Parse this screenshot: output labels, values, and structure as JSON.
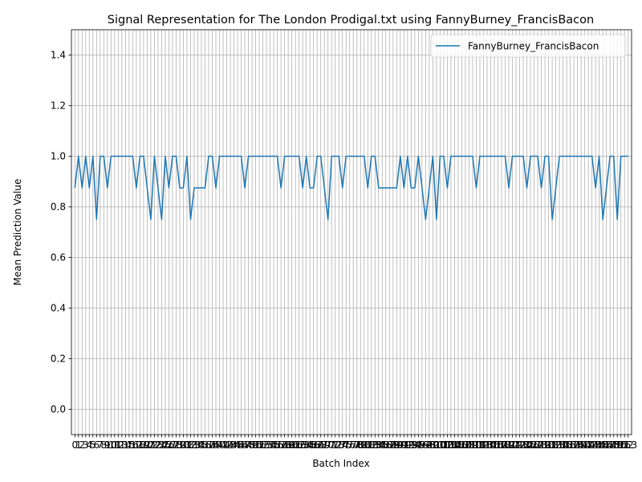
{
  "chart_data": {
    "type": "line",
    "title": "Signal Representation for The London Prodigal.txt using FannyBurney_FrancisBacon",
    "xlabel": "Batch Index",
    "ylabel": "Mean Prediction Value",
    "xlim": [
      -0.95,
      153.95
    ],
    "ylim": [
      -0.1,
      1.5
    ],
    "yticks": [
      0.0,
      0.2,
      0.4,
      0.6,
      0.8,
      1.0,
      1.2,
      1.4
    ],
    "ytick_labels": [
      "0.0",
      "0.2",
      "0.4",
      "0.6",
      "0.8",
      "1.0",
      "1.2",
      "1.4"
    ],
    "grid": true,
    "legend_position": "top-right",
    "colors": {
      "series": "#1f77b4",
      "grid": "#b0b0b0"
    },
    "x": [
      0,
      1,
      2,
      3,
      4,
      5,
      6,
      7,
      8,
      9,
      10,
      11,
      12,
      13,
      14,
      15,
      16,
      17,
      18,
      19,
      20,
      21,
      22,
      23,
      24,
      25,
      26,
      27,
      28,
      29,
      30,
      31,
      32,
      33,
      34,
      35,
      36,
      37,
      38,
      39,
      40,
      41,
      42,
      43,
      44,
      45,
      46,
      47,
      48,
      49,
      50,
      51,
      52,
      53,
      54,
      55,
      56,
      57,
      58,
      59,
      60,
      61,
      62,
      63,
      64,
      65,
      66,
      67,
      68,
      69,
      70,
      71,
      72,
      73,
      74,
      75,
      76,
      77,
      78,
      79,
      80,
      81,
      82,
      83,
      84,
      85,
      86,
      87,
      88,
      89,
      90,
      91,
      92,
      93,
      94,
      95,
      96,
      97,
      98,
      99,
      100,
      101,
      102,
      103,
      104,
      105,
      106,
      107,
      108,
      109,
      110,
      111,
      112,
      113,
      114,
      115,
      116,
      117,
      118,
      119,
      120,
      121,
      122,
      123,
      124,
      125,
      126,
      127,
      128,
      129,
      130,
      131,
      132,
      133,
      134,
      135,
      136,
      137,
      138,
      139,
      140,
      141,
      142,
      143,
      144,
      145,
      146,
      147,
      148,
      149,
      150,
      151,
      152,
      153
    ],
    "xtick_labels": [
      "0",
      "1",
      "2",
      "3",
      "4",
      "5",
      "6",
      "7",
      "8",
      "9",
      "10",
      "11",
      "12",
      "13",
      "14",
      "15",
      "16",
      "17",
      "18",
      "19",
      "20",
      "21",
      "22",
      "23",
      "24",
      "25",
      "26",
      "27",
      "28",
      "29",
      "30",
      "31",
      "32",
      "33",
      "34",
      "35",
      "36",
      "37",
      "38",
      "39",
      "40",
      "41",
      "42",
      "43",
      "44",
      "45",
      "46",
      "47",
      "48",
      "49",
      "50",
      "51",
      "52",
      "53",
      "54",
      "55",
      "56",
      "57",
      "58",
      "59",
      "60",
      "61",
      "62",
      "63",
      "64",
      "65",
      "66",
      "67",
      "68",
      "69",
      "70",
      "71",
      "72",
      "73",
      "74",
      "75",
      "76",
      "77",
      "78",
      "79",
      "80",
      "81",
      "82",
      "83",
      "84",
      "85",
      "86",
      "87",
      "88",
      "89",
      "90",
      "91",
      "92",
      "93",
      "94",
      "95",
      "96",
      "97",
      "98",
      "99",
      "100",
      "101",
      "102",
      "103",
      "104",
      "105",
      "106",
      "107",
      "108",
      "109",
      "110",
      "111",
      "112",
      "113",
      "114",
      "115",
      "116",
      "117",
      "118",
      "119",
      "120",
      "121",
      "122",
      "123",
      "124",
      "125",
      "126",
      "127",
      "128",
      "129",
      "130",
      "131",
      "132",
      "133",
      "134",
      "135",
      "136",
      "137",
      "138",
      "139",
      "140",
      "141",
      "142",
      "143",
      "144",
      "145",
      "146",
      "147",
      "148",
      "149",
      "150",
      "151",
      "152",
      "153"
    ],
    "series": [
      {
        "name": "FannyBurney_FrancisBacon",
        "values": [
          0.875,
          1.0,
          0.875,
          1.0,
          0.875,
          1.0,
          0.75,
          1.0,
          1.0,
          0.875,
          1.0,
          1.0,
          1.0,
          1.0,
          1.0,
          1.0,
          1.0,
          0.875,
          1.0,
          1.0,
          0.875,
          0.75,
          1.0,
          0.875,
          0.75,
          1.0,
          0.875,
          1.0,
          1.0,
          0.875,
          0.875,
          1.0,
          0.75,
          0.875,
          0.875,
          0.875,
          0.875,
          1.0,
          1.0,
          0.875,
          1.0,
          1.0,
          1.0,
          1.0,
          1.0,
          1.0,
          1.0,
          0.875,
          1.0,
          1.0,
          1.0,
          1.0,
          1.0,
          1.0,
          1.0,
          1.0,
          1.0,
          0.875,
          1.0,
          1.0,
          1.0,
          1.0,
          1.0,
          0.875,
          1.0,
          0.875,
          0.875,
          1.0,
          1.0,
          0.875,
          0.75,
          1.0,
          1.0,
          1.0,
          0.875,
          1.0,
          1.0,
          1.0,
          1.0,
          1.0,
          1.0,
          0.875,
          1.0,
          1.0,
          0.875,
          0.875,
          0.875,
          0.875,
          0.875,
          0.875,
          1.0,
          0.875,
          1.0,
          0.875,
          0.875,
          1.0,
          0.875,
          0.75,
          0.875,
          1.0,
          0.75,
          1.0,
          1.0,
          0.875,
          1.0,
          1.0,
          1.0,
          1.0,
          1.0,
          1.0,
          1.0,
          0.875,
          1.0,
          1.0,
          1.0,
          1.0,
          1.0,
          1.0,
          1.0,
          1.0,
          0.875,
          1.0,
          1.0,
          1.0,
          1.0,
          0.875,
          1.0,
          1.0,
          1.0,
          0.875,
          1.0,
          1.0,
          0.75,
          0.875,
          1.0,
          1.0,
          1.0,
          1.0,
          1.0,
          1.0,
          1.0,
          1.0,
          1.0,
          1.0,
          0.875,
          1.0,
          0.75,
          0.875,
          1.0,
          1.0,
          0.75,
          1.0,
          1.0,
          1.0
        ]
      }
    ]
  }
}
